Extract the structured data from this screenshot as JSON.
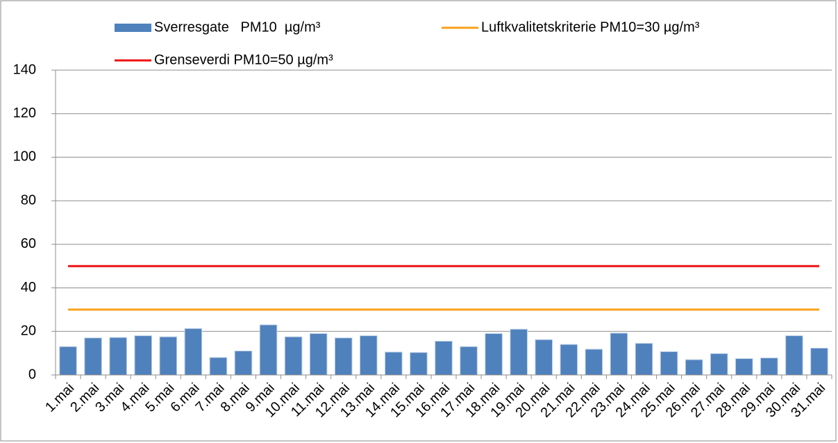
{
  "chart_data": {
    "type": "bar",
    "categories": [
      "1.mai",
      "2.mai",
      "3.mai",
      "4.mai",
      "5.mai",
      "6.mai",
      "7.mai",
      "8.mai",
      "9.mai",
      "10.mai",
      "11.mai",
      "12.mai",
      "13.mai",
      "14.mai",
      "15.mai",
      "16.mai",
      "17.mai",
      "18.mai",
      "19.mai",
      "20.mai",
      "21.mai",
      "22.mai",
      "23.mai",
      "24.mai",
      "25.mai",
      "26.mai",
      "27.mai",
      "28.mai",
      "29.mai",
      "30.mai",
      "31.mai"
    ],
    "series": [
      {
        "name": "Sverresgate   PM10  µg/m³",
        "type": "bar",
        "color": "#4f81bd",
        "values": [
          13,
          17,
          17.2,
          18,
          17.5,
          21.3,
          8,
          11,
          23,
          17.5,
          19,
          17,
          18,
          10.5,
          10.3,
          15.5,
          13,
          19,
          21,
          16.2,
          14,
          11.8,
          19.2,
          14.5,
          10.7,
          7,
          9.8,
          7.5,
          7.8,
          18,
          12.3
        ]
      },
      {
        "name": "Luftkvalitetskriterie PM10=30 µg/m³",
        "type": "line",
        "color": "#f9a11b",
        "values": [
          30,
          30,
          30,
          30,
          30,
          30,
          30,
          30,
          30,
          30,
          30,
          30,
          30,
          30,
          30,
          30,
          30,
          30,
          30,
          30,
          30,
          30,
          30,
          30,
          30,
          30,
          30,
          30,
          30,
          30,
          30
        ]
      },
      {
        "name": "Grenseverdi PM10=50 µg/m³",
        "type": "line",
        "color": "#ee1111",
        "values": [
          50,
          50,
          50,
          50,
          50,
          50,
          50,
          50,
          50,
          50,
          50,
          50,
          50,
          50,
          50,
          50,
          50,
          50,
          50,
          50,
          50,
          50,
          50,
          50,
          50,
          50,
          50,
          50,
          50,
          50,
          50
        ]
      }
    ],
    "ylim": [
      0,
      140
    ],
    "yticks": [
      0,
      20,
      40,
      60,
      80,
      100,
      120,
      140
    ],
    "grid": true
  }
}
